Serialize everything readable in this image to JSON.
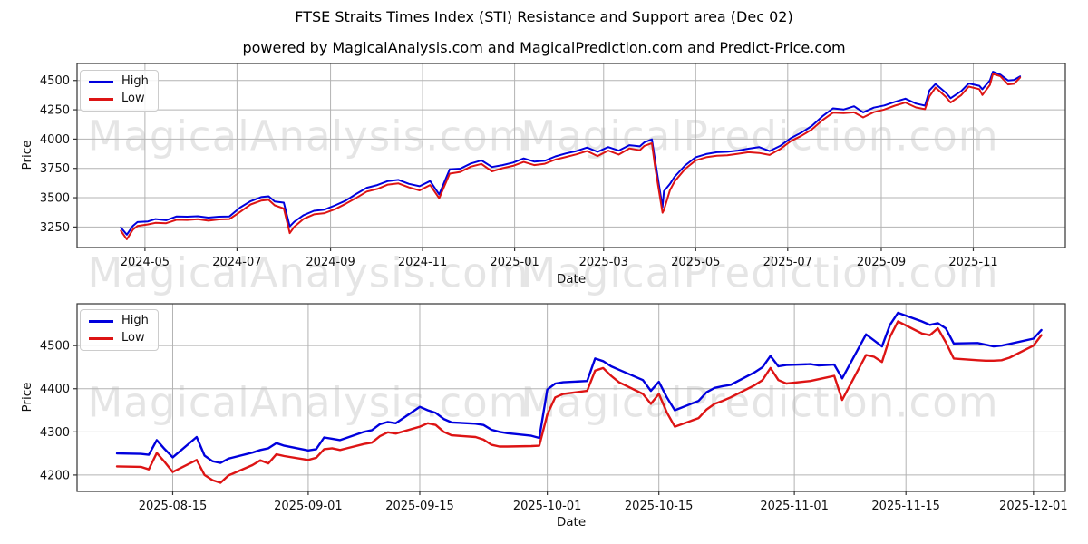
{
  "figure": {
    "title": "FTSE Straits Times Index (STI) Resistance and Support area (Dec 02)",
    "subtitle": "powered by MagicalAnalysis.com and MagicalPrediction.com and Predict-Price.com"
  },
  "watermarks": {
    "analysis": "MagicalAnalysis.com",
    "prediction": "MagicalPrediction.com"
  },
  "colors": {
    "high": "#0000dd",
    "low": "#dd1414",
    "grid": "#b3b3b3",
    "spine": "#333333",
    "tick": "#333333",
    "watermark": "rgba(0,0,0,0.10)"
  },
  "chart_data": [
    {
      "id": "sti-overview",
      "type": "line",
      "xlabel": "Date",
      "ylabel": "Price",
      "legend_position": "upper-left",
      "grid": true,
      "line_width": 2,
      "xlim": [
        "2024-03-17",
        "2026-01-01"
      ],
      "ylim": [
        3075,
        4645
      ],
      "yticks": [
        3250,
        3500,
        3750,
        4000,
        4250,
        4500
      ],
      "xticks": [
        {
          "date": "2024-05-01",
          "label": "2024-05"
        },
        {
          "date": "2024-07-01",
          "label": "2024-07"
        },
        {
          "date": "2024-09-01",
          "label": "2024-09"
        },
        {
          "date": "2024-11-01",
          "label": "2024-11"
        },
        {
          "date": "2025-01-01",
          "label": "2025-01"
        },
        {
          "date": "2025-03-01",
          "label": "2025-03"
        },
        {
          "date": "2025-05-01",
          "label": "2025-05"
        },
        {
          "date": "2025-07-01",
          "label": "2025-07"
        },
        {
          "date": "2025-09-01",
          "label": "2025-09"
        },
        {
          "date": "2025-11-01",
          "label": "2025-11"
        }
      ],
      "x": [
        "2024-04-15",
        "2024-04-19",
        "2024-04-23",
        "2024-04-26",
        "2024-05-03",
        "2024-05-08",
        "2024-05-15",
        "2024-05-22",
        "2024-05-29",
        "2024-06-05",
        "2024-06-12",
        "2024-06-19",
        "2024-06-26",
        "2024-07-03",
        "2024-07-10",
        "2024-07-17",
        "2024-07-22",
        "2024-07-26",
        "2024-08-01",
        "2024-08-05",
        "2024-08-08",
        "2024-08-14",
        "2024-08-21",
        "2024-08-28",
        "2024-09-04",
        "2024-09-11",
        "2024-09-18",
        "2024-09-25",
        "2024-10-02",
        "2024-10-09",
        "2024-10-16",
        "2024-10-23",
        "2024-10-30",
        "2024-11-06",
        "2024-11-12",
        "2024-11-19",
        "2024-11-26",
        "2024-12-03",
        "2024-12-10",
        "2024-12-17",
        "2024-12-24",
        "2024-12-31",
        "2025-01-07",
        "2025-01-14",
        "2025-01-21",
        "2025-01-28",
        "2025-02-04",
        "2025-02-11",
        "2025-02-18",
        "2025-02-25",
        "2025-03-04",
        "2025-03-11",
        "2025-03-18",
        "2025-03-25",
        "2025-03-28",
        "2025-04-02",
        "2025-04-04",
        "2025-04-09",
        "2025-04-10",
        "2025-04-14",
        "2025-04-17",
        "2025-04-24",
        "2025-05-01",
        "2025-05-08",
        "2025-05-15",
        "2025-05-22",
        "2025-05-29",
        "2025-06-05",
        "2025-06-12",
        "2025-06-19",
        "2025-06-26",
        "2025-07-03",
        "2025-07-10",
        "2025-07-17",
        "2025-07-24",
        "2025-07-31",
        "2025-08-07",
        "2025-08-14",
        "2025-08-20",
        "2025-08-27",
        "2025-09-03",
        "2025-09-10",
        "2025-09-17",
        "2025-09-24",
        "2025-09-30",
        "2025-10-03",
        "2025-10-07",
        "2025-10-14",
        "2025-10-17",
        "2025-10-24",
        "2025-10-29",
        "2025-11-05",
        "2025-11-07",
        "2025-11-12",
        "2025-11-14",
        "2025-11-19",
        "2025-11-24",
        "2025-11-28",
        "2025-12-02"
      ],
      "series": [
        {
          "name": "High",
          "color_key": "high",
          "values": [
            3245,
            3185,
            3260,
            3292,
            3298,
            3318,
            3308,
            3340,
            3338,
            3342,
            3330,
            3338,
            3340,
            3415,
            3470,
            3505,
            3512,
            3468,
            3458,
            3255,
            3295,
            3350,
            3388,
            3398,
            3435,
            3475,
            3532,
            3585,
            3608,
            3642,
            3652,
            3618,
            3598,
            3642,
            3528,
            3742,
            3748,
            3792,
            3818,
            3762,
            3778,
            3800,
            3835,
            3808,
            3815,
            3852,
            3878,
            3898,
            3928,
            3892,
            3932,
            3902,
            3948,
            3938,
            3972,
            3998,
            3825,
            3418,
            3555,
            3618,
            3678,
            3775,
            3845,
            3872,
            3888,
            3892,
            3902,
            3918,
            3932,
            3898,
            3942,
            4008,
            4055,
            4112,
            4195,
            4262,
            4252,
            4280,
            4228,
            4268,
            4287,
            4318,
            4345,
            4303,
            4285,
            4416,
            4470,
            4394,
            4349,
            4410,
            4475,
            4455,
            4425,
            4500,
            4575,
            4550,
            4500,
            4505,
            4535
          ]
        },
        {
          "name": "Low",
          "color_key": "low",
          "values": [
            3218,
            3145,
            3228,
            3258,
            3272,
            3285,
            3282,
            3312,
            3310,
            3316,
            3304,
            3315,
            3318,
            3378,
            3442,
            3475,
            3482,
            3435,
            3408,
            3198,
            3252,
            3318,
            3358,
            3368,
            3402,
            3448,
            3498,
            3552,
            3575,
            3612,
            3622,
            3588,
            3562,
            3608,
            3495,
            3705,
            3720,
            3765,
            3788,
            3725,
            3752,
            3772,
            3805,
            3778,
            3790,
            3825,
            3848,
            3870,
            3898,
            3855,
            3902,
            3868,
            3920,
            3905,
            3942,
            3965,
            3768,
            3372,
            3395,
            3565,
            3638,
            3745,
            3818,
            3845,
            3858,
            3862,
            3875,
            3888,
            3882,
            3865,
            3915,
            3982,
            4028,
            4082,
            4162,
            4225,
            4222,
            4228,
            4185,
            4230,
            4252,
            4285,
            4312,
            4270,
            4255,
            4365,
            4440,
            4358,
            4312,
            4375,
            4448,
            4426,
            4376,
            4462,
            4556,
            4536,
            4466,
            4472,
            4525
          ]
        }
      ]
    },
    {
      "id": "sti-recent-zoom",
      "type": "line",
      "xlabel": "Date",
      "ylabel": "Price",
      "legend_position": "upper-left",
      "grid": true,
      "line_width": 2.4,
      "xlim": [
        "2025-08-03",
        "2025-12-05"
      ],
      "ylim": [
        4162,
        4597
      ],
      "yticks": [
        4200,
        4300,
        4400,
        4500
      ],
      "xticks": [
        {
          "date": "2025-08-15",
          "label": "2025-08-15"
        },
        {
          "date": "2025-09-01",
          "label": "2025-09-01"
        },
        {
          "date": "2025-09-15",
          "label": "2025-09-15"
        },
        {
          "date": "2025-10-01",
          "label": "2025-10-01"
        },
        {
          "date": "2025-10-15",
          "label": "2025-10-15"
        },
        {
          "date": "2025-11-01",
          "label": "2025-11-01"
        },
        {
          "date": "2025-11-15",
          "label": "2025-11-15"
        },
        {
          "date": "2025-12-01",
          "label": "2025-12-01"
        }
      ],
      "x": [
        "2025-08-08",
        "2025-08-11",
        "2025-08-12",
        "2025-08-13",
        "2025-08-14",
        "2025-08-15",
        "2025-08-18",
        "2025-08-19",
        "2025-08-20",
        "2025-08-21",
        "2025-08-22",
        "2025-08-25",
        "2025-08-26",
        "2025-08-27",
        "2025-08-28",
        "2025-08-29",
        "2025-09-01",
        "2025-09-02",
        "2025-09-03",
        "2025-09-04",
        "2025-09-05",
        "2025-09-08",
        "2025-09-09",
        "2025-09-10",
        "2025-09-11",
        "2025-09-12",
        "2025-09-15",
        "2025-09-16",
        "2025-09-17",
        "2025-09-18",
        "2025-09-19",
        "2025-09-22",
        "2025-09-23",
        "2025-09-24",
        "2025-09-25",
        "2025-09-26",
        "2025-09-29",
        "2025-09-30",
        "2025-10-01",
        "2025-10-02",
        "2025-10-03",
        "2025-10-06",
        "2025-10-07",
        "2025-10-08",
        "2025-10-09",
        "2025-10-10",
        "2025-10-13",
        "2025-10-14",
        "2025-10-15",
        "2025-10-16",
        "2025-10-17",
        "2025-10-20",
        "2025-10-21",
        "2025-10-22",
        "2025-10-23",
        "2025-10-24",
        "2025-10-27",
        "2025-10-28",
        "2025-10-29",
        "2025-10-30",
        "2025-10-31",
        "2025-11-03",
        "2025-11-04",
        "2025-11-05",
        "2025-11-06",
        "2025-11-07",
        "2025-11-10",
        "2025-11-11",
        "2025-11-12",
        "2025-11-13",
        "2025-11-14",
        "2025-11-17",
        "2025-11-18",
        "2025-11-19",
        "2025-11-20",
        "2025-11-21",
        "2025-11-24",
        "2025-11-25",
        "2025-11-26",
        "2025-11-27",
        "2025-11-28",
        "2025-12-01",
        "2025-12-02"
      ],
      "series": [
        {
          "name": "High",
          "color_key": "high",
          "values": [
            4250,
            4249,
            4247,
            4281,
            4260,
            4241,
            4288,
            4245,
            4232,
            4228,
            4238,
            4252,
            4258,
            4262,
            4274,
            4268,
            4257,
            4260,
            4287,
            4284,
            4281,
            4300,
            4304,
            4318,
            4323,
            4320,
            4358,
            4350,
            4344,
            4330,
            4322,
            4319,
            4316,
            4305,
            4300,
            4297,
            4291,
            4286,
            4398,
            4412,
            4415,
            4418,
            4470,
            4464,
            4452,
            4444,
            4420,
            4395,
            4416,
            4380,
            4350,
            4372,
            4392,
            4402,
            4406,
            4409,
            4438,
            4450,
            4476,
            4452,
            4455,
            4457,
            4454,
            4455,
            4456,
            4424,
            4526,
            4512,
            4498,
            4548,
            4576,
            4556,
            4548,
            4552,
            4540,
            4505,
            4506,
            4502,
            4498,
            4500,
            4504,
            4516,
            4536
          ]
        },
        {
          "name": "Low",
          "color_key": "low",
          "values": [
            4220,
            4219,
            4213,
            4251,
            4230,
            4207,
            4235,
            4200,
            4188,
            4182,
            4199,
            4223,
            4234,
            4227,
            4248,
            4244,
            4235,
            4240,
            4260,
            4262,
            4258,
            4272,
            4275,
            4290,
            4299,
            4296,
            4312,
            4320,
            4316,
            4300,
            4292,
            4288,
            4282,
            4270,
            4266,
            4266,
            4267,
            4268,
            4340,
            4380,
            4388,
            4395,
            4442,
            4448,
            4430,
            4415,
            4388,
            4365,
            4388,
            4345,
            4312,
            4332,
            4352,
            4365,
            4372,
            4380,
            4408,
            4420,
            4448,
            4420,
            4412,
            4418,
            4422,
            4426,
            4430,
            4374,
            4478,
            4474,
            4462,
            4520,
            4556,
            4528,
            4524,
            4540,
            4508,
            4470,
            4466,
            4465,
            4465,
            4466,
            4472,
            4500,
            4524
          ]
        }
      ]
    }
  ]
}
